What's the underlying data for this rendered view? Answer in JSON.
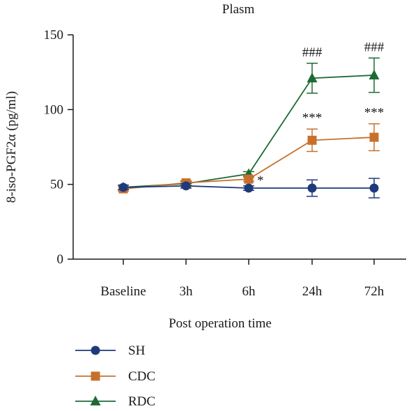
{
  "chart_data": {
    "type": "line",
    "title": "Plasm",
    "xlabel": "Post operation time",
    "ylabel": "8-iso-PGF2α (pg/ml)",
    "categories": [
      "Baseline",
      "3h",
      "6h",
      "24h",
      "72h"
    ],
    "ylim": [
      0,
      150
    ],
    "yticks": [
      0,
      50,
      100,
      150
    ],
    "grid": false,
    "legend_position": "bottom-left",
    "series": [
      {
        "name": "SH",
        "marker": "circle",
        "color": "#1f3a7a",
        "values": [
          48,
          49,
          47.5,
          47.5,
          47.5
        ],
        "errors": [
          1.5,
          1.5,
          1.5,
          5.5,
          6.5
        ],
        "annotations": [
          "",
          "",
          "",
          "",
          ""
        ]
      },
      {
        "name": "CDC",
        "marker": "square",
        "color": "#c8702b",
        "values": [
          47,
          51,
          53.5,
          79.5,
          81.5
        ],
        "errors": [
          1.5,
          1.5,
          1.5,
          7.5,
          9.0
        ],
        "annotations": [
          "",
          "",
          "*",
          "***",
          "***"
        ]
      },
      {
        "name": "RDC",
        "marker": "triangle",
        "color": "#1d6a34",
        "values": [
          48,
          50.5,
          57,
          121,
          123
        ],
        "errors": [
          1.5,
          1.5,
          1.5,
          10.0,
          11.5
        ],
        "annotations": [
          "",
          "",
          "",
          "###",
          "###"
        ]
      }
    ]
  }
}
